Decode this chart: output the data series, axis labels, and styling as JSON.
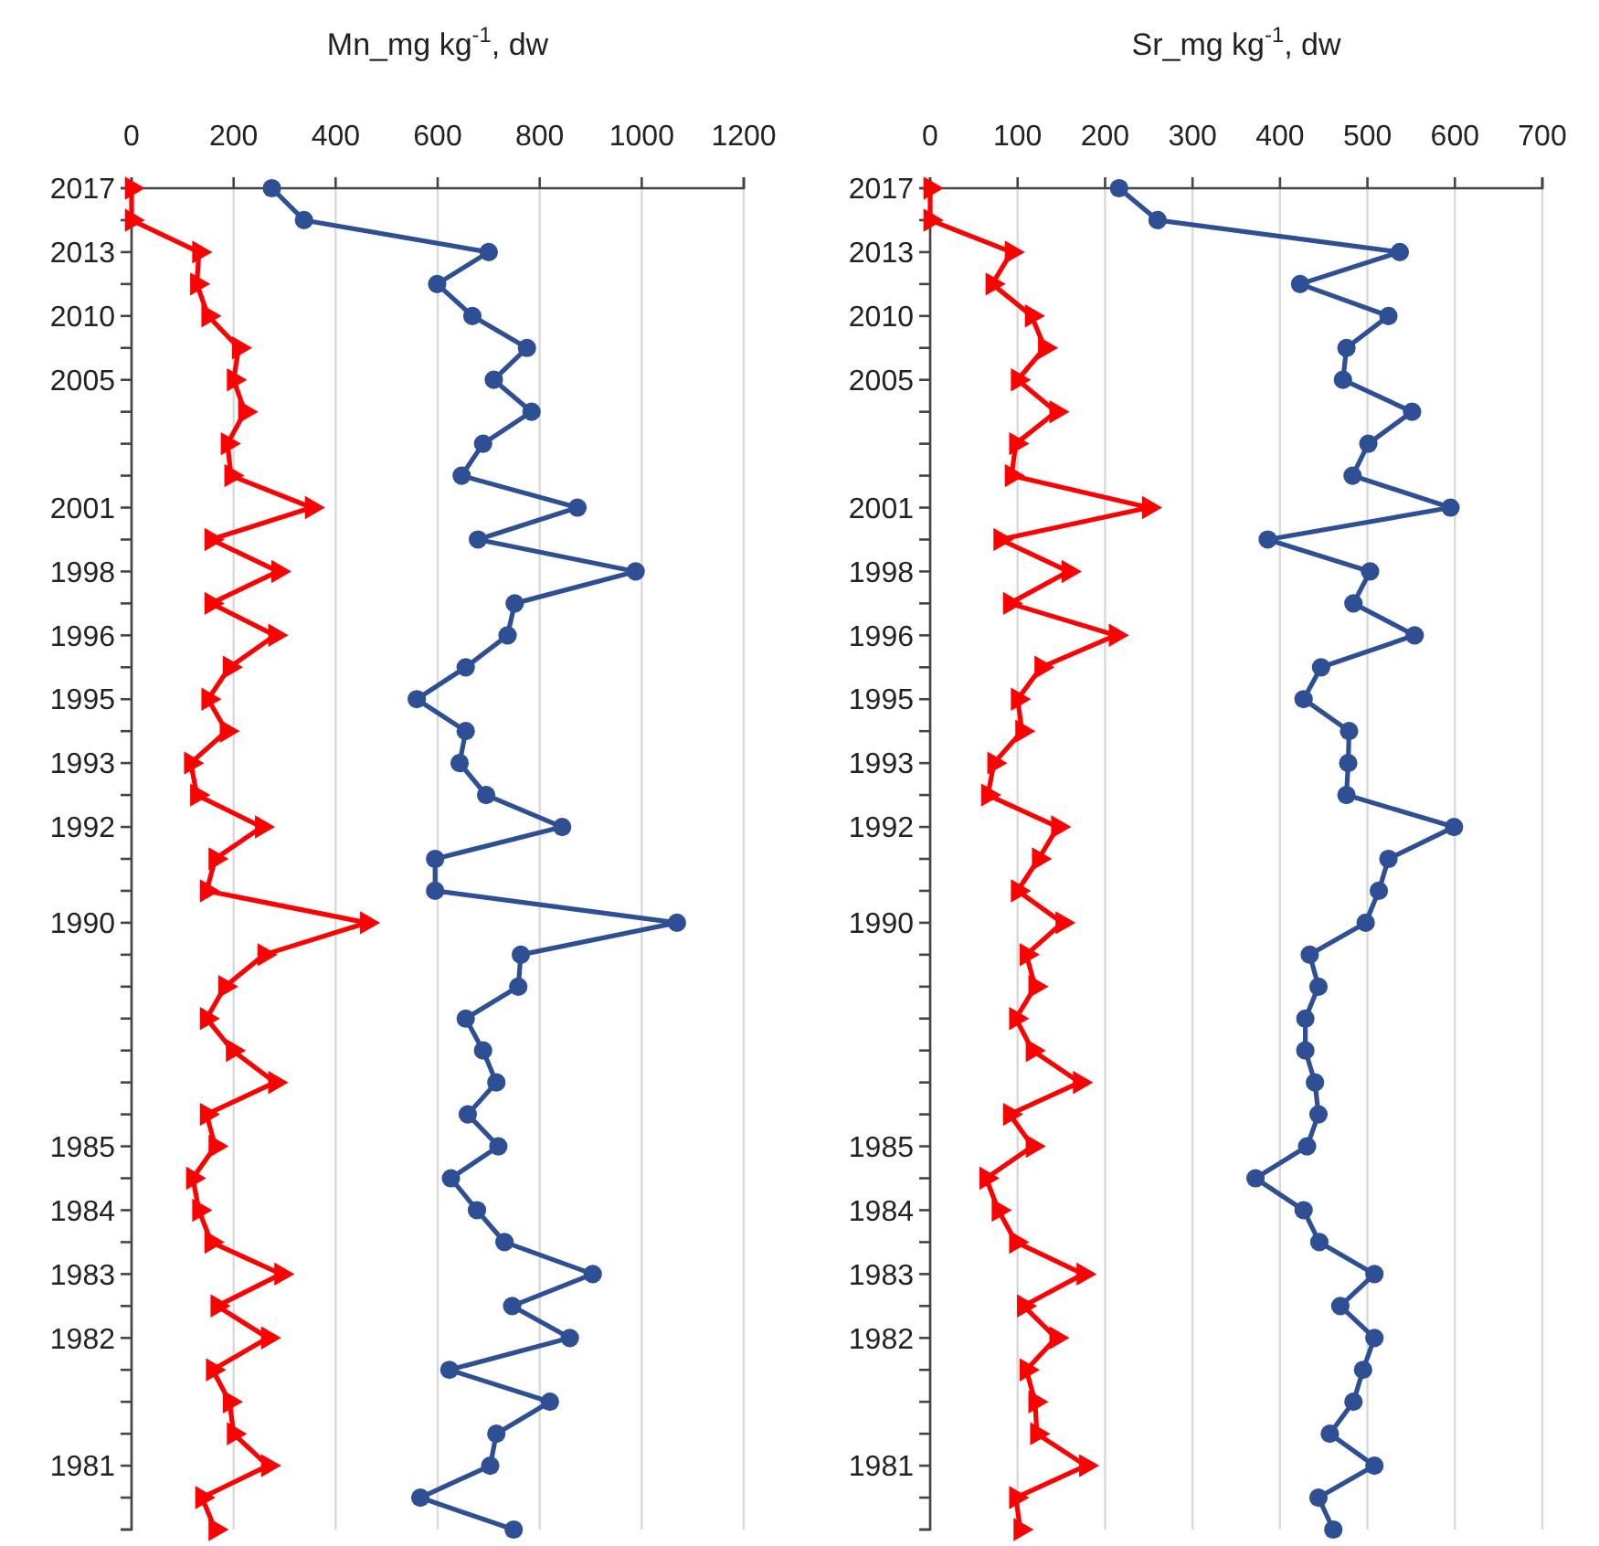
{
  "chart_data": [
    {
      "type": "line",
      "orientation": "horizontal",
      "xlabel": "Mn_mg kg$^{-1}$, dw",
      "categories": [
        "2017",
        null,
        "2013",
        null,
        "2010",
        null,
        "2005",
        null,
        null,
        null,
        "2001",
        null,
        "1998",
        null,
        "1996",
        null,
        "1995",
        null,
        "1993",
        null,
        "1992",
        null,
        null,
        "1990",
        null,
        null,
        null,
        null,
        null,
        null,
        "1985",
        null,
        "1984",
        null,
        "1983",
        null,
        "1982",
        null,
        null,
        null,
        "1981",
        null,
        null
      ],
      "xlim": [
        0,
        1200
      ],
      "xticks": [
        0,
        200,
        400,
        600,
        800,
        1000,
        1200
      ],
      "grid": "x",
      "series": [
        {
          "color": "#ff0000",
          "marker": "triangle",
          "values": [
            0,
            0,
            132,
            128,
            150,
            210,
            200,
            222,
            188,
            195,
            353,
            156,
            287,
            156,
            281,
            192,
            150,
            186,
            116,
            128,
            255,
            164,
            147,
            461,
            260,
            183,
            147,
            198,
            281,
            147,
            164,
            120,
            132,
            156,
            293,
            168,
            267,
            159,
            192,
            200,
            267,
            138,
            164
          ]
        },
        {
          "color": "#2f4f95",
          "marker": "circle",
          "values": [
            275,
            338,
            700,
            599,
            668,
            775,
            710,
            784,
            689,
            647,
            874,
            679,
            988,
            751,
            737,
            655,
            559,
            655,
            643,
            695,
            844,
            595,
            595,
            1069,
            763,
            758,
            655,
            689,
            715,
            659,
            719,
            626,
            677,
            731,
            904,
            746,
            859,
            623,
            820,
            715,
            703,
            566,
            749
          ]
        }
      ]
    },
    {
      "type": "line",
      "orientation": "horizontal",
      "xlabel": "Sr_mg kg$^{-1}$, dw",
      "categories": [
        "2017",
        null,
        "2013",
        null,
        "2010",
        null,
        "2005",
        null,
        null,
        null,
        "2001",
        null,
        "1998",
        null,
        "1996",
        null,
        "1995",
        null,
        "1993",
        null,
        "1992",
        null,
        null,
        "1990",
        null,
        null,
        null,
        null,
        null,
        null,
        "1985",
        null,
        "1984",
        null,
        "1983",
        null,
        "1982",
        null,
        null,
        null,
        "1981",
        null,
        null
      ],
      "xlim": [
        0,
        700
      ],
      "xticks": [
        0,
        100,
        200,
        300,
        400,
        500,
        600,
        700
      ],
      "grid": "x",
      "series": [
        {
          "color": "#ff0000",
          "marker": "triangle",
          "values": [
            0,
            0,
            93,
            71,
            116,
            131,
            100,
            144,
            98,
            93,
            250,
            80,
            158,
            91,
            212,
            127,
            100,
            105,
            73,
            66,
            146,
            124,
            100,
            151,
            110,
            120,
            98,
            117,
            171,
            91,
            117,
            64,
            78,
            98,
            175,
            107,
            144,
            110,
            120,
            122,
            178,
            98,
            103
          ]
        },
        {
          "color": "#2f4f95",
          "marker": "circle",
          "values": [
            216,
            260,
            537,
            423,
            524,
            476,
            472,
            551,
            501,
            483,
            595,
            386,
            503,
            484,
            554,
            447,
            427,
            479,
            478,
            476,
            599,
            524,
            513,
            498,
            434,
            444,
            429,
            429,
            440,
            444,
            431,
            372,
            427,
            445,
            508,
            469,
            508,
            495,
            484,
            457,
            508,
            444,
            461
          ]
        }
      ]
    }
  ]
}
